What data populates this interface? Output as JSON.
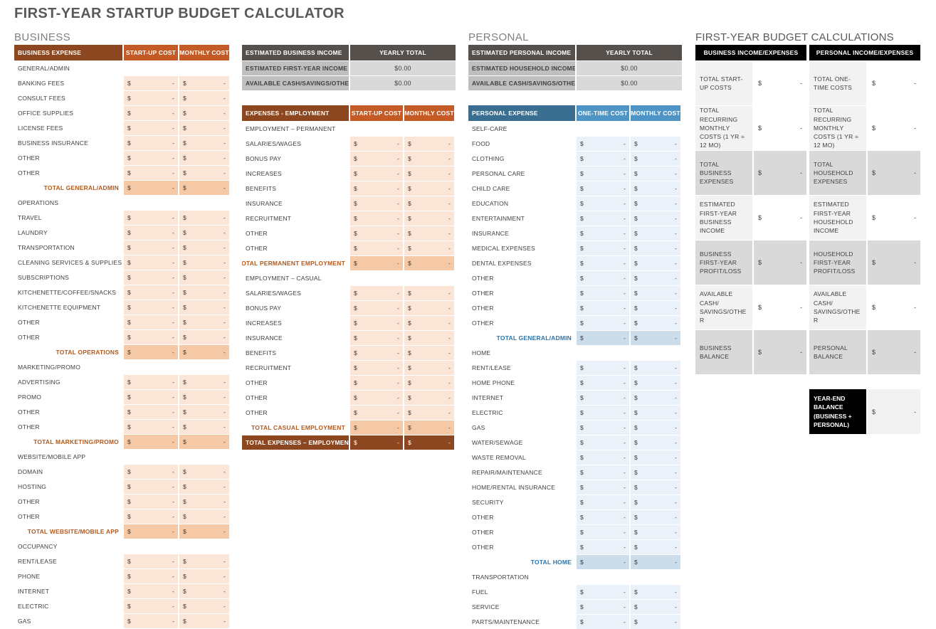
{
  "page": {
    "title": "FIRST-YEAR STARTUP BUDGET CALCULATOR"
  },
  "colors": {
    "business_header": "#8C4720",
    "business_subheader": "#C45B26",
    "business_light": "#FBE5D6",
    "business_total": "#F5C9A5",
    "business_total_text": "#B5591C",
    "personal_header": "#3A6E91",
    "personal_subheader": "#4E95C6",
    "personal_light": "#EAF1F8",
    "personal_category": "#DEEAF4",
    "personal_total": "#CBDCEA",
    "personal_total_text": "#2E74A8",
    "income_header": "#55504C",
    "income_label": "#BFBFBF",
    "income_value": "#D9D9D9",
    "calc_light": "#F2F2F2",
    "calc_dark": "#D9D9D9",
    "calc_header": "#000000"
  },
  "currency": "$",
  "empty_value": "-",
  "business": {
    "section_label": "BUSINESS",
    "expense_table": {
      "headers": [
        "BUSINESS EXPENSE",
        "START-UP COST",
        "MONTHLY COST"
      ],
      "rows": [
        {
          "type": "category",
          "label": "GENERAL/ADMIN"
        },
        {
          "type": "item",
          "label": "BANKING FEES"
        },
        {
          "type": "item",
          "label": "CONSULT FEES"
        },
        {
          "type": "item",
          "label": "OFFICE SUPPLIES"
        },
        {
          "type": "item",
          "label": "LICENSE FEES"
        },
        {
          "type": "item",
          "label": "BUSINESS INSURANCE"
        },
        {
          "type": "item",
          "label": "OTHER"
        },
        {
          "type": "item",
          "label": "OTHER"
        },
        {
          "type": "total",
          "label": "TOTAL GENERAL/ADMIN"
        },
        {
          "type": "category",
          "label": "OPERATIONS"
        },
        {
          "type": "item",
          "label": "TRAVEL"
        },
        {
          "type": "item",
          "label": "LAUNDRY"
        },
        {
          "type": "item",
          "label": "TRANSPORTATION"
        },
        {
          "type": "item",
          "label": "CLEANING SERVICES & SUPPLIES"
        },
        {
          "type": "item",
          "label": "SUBSCRIPTIONS"
        },
        {
          "type": "item",
          "label": "KITCHENETTE/COFFEE/SNACKS"
        },
        {
          "type": "item",
          "label": "KITCHENETTE EQUIPMENT"
        },
        {
          "type": "item",
          "label": "OTHER"
        },
        {
          "type": "item",
          "label": "OTHER"
        },
        {
          "type": "total",
          "label": "TOTAL OPERATIONS"
        },
        {
          "type": "category",
          "label": "MARKETING/PROMO"
        },
        {
          "type": "item",
          "label": "ADVERTISING"
        },
        {
          "type": "item",
          "label": "PROMO"
        },
        {
          "type": "item",
          "label": "OTHER"
        },
        {
          "type": "item",
          "label": "OTHER"
        },
        {
          "type": "total",
          "label": "TOTAL MARKETING/PROMO"
        },
        {
          "type": "category",
          "label": "WEBSITE/MOBILE APP"
        },
        {
          "type": "item",
          "label": "DOMAIN"
        },
        {
          "type": "item",
          "label": "HOSTING"
        },
        {
          "type": "item",
          "label": "OTHER"
        },
        {
          "type": "item",
          "label": "OTHER"
        },
        {
          "type": "total",
          "label": "TOTAL WEBSITE/MOBILE APP"
        },
        {
          "type": "category",
          "label": "OCCUPANCY"
        },
        {
          "type": "item",
          "label": "RENT/LEASE"
        },
        {
          "type": "item",
          "label": "PHONE"
        },
        {
          "type": "item",
          "label": "INTERNET"
        },
        {
          "type": "item",
          "label": "ELECTRIC"
        },
        {
          "type": "item",
          "label": "GAS"
        }
      ]
    },
    "income_table": {
      "headers": [
        "ESTIMATED BUSINESS INCOME",
        "YEARLY TOTAL"
      ],
      "rows": [
        {
          "label": "ESTIMATED FIRST-YEAR INCOME",
          "value": "$0.00"
        },
        {
          "label": "AVAILABLE CASH/SAVINGS/OTHER",
          "value": "$0.00"
        }
      ]
    },
    "employment_table": {
      "headers": [
        "EXPENSES - EMPLOYMENT",
        "START-UP COST",
        "MONTHLY COST"
      ],
      "rows": [
        {
          "type": "category",
          "label": "EMPLOYMENT – PERMANENT"
        },
        {
          "type": "item",
          "label": "SALARIES/WAGES"
        },
        {
          "type": "item",
          "label": "BONUS PAY"
        },
        {
          "type": "item",
          "label": "INCREASES"
        },
        {
          "type": "item",
          "label": "BENEFITS"
        },
        {
          "type": "item",
          "label": "INSURANCE"
        },
        {
          "type": "item",
          "label": "RECRUITMENT"
        },
        {
          "type": "item",
          "label": "OTHER"
        },
        {
          "type": "item",
          "label": "OTHER"
        },
        {
          "type": "total",
          "label": "TOTAL PERMANENT EMPLOYMENT"
        },
        {
          "type": "category",
          "label": "EMPLOYMENT – CASUAL"
        },
        {
          "type": "item",
          "label": "SALARIES/WAGES"
        },
        {
          "type": "item",
          "label": "BONUS PAY"
        },
        {
          "type": "item",
          "label": "INCREASES"
        },
        {
          "type": "item",
          "label": "INSURANCE"
        },
        {
          "type": "item",
          "label": "BENEFITS"
        },
        {
          "type": "item",
          "label": "RECRUITMENT"
        },
        {
          "type": "item",
          "label": "OTHER"
        },
        {
          "type": "item",
          "label": "OTHER"
        },
        {
          "type": "item",
          "label": "OTHER"
        },
        {
          "type": "total",
          "label": "TOTAL CASUAL EMPLOYMENT"
        },
        {
          "type": "grandtotal",
          "label": "TOTAL EXPENSES – EMPLOYMENT"
        }
      ]
    }
  },
  "personal": {
    "section_label": "PERSONAL",
    "income_table": {
      "headers": [
        "ESTIMATED PERSONAL INCOME",
        "YEARLY TOTAL"
      ],
      "rows": [
        {
          "label": "ESTIMATED HOUSEHOLD INCOME",
          "value": "$0.00"
        },
        {
          "label": "AVAILABLE CASH/SAVINGS/OTHER",
          "value": "$0.00"
        }
      ]
    },
    "expense_table": {
      "headers": [
        "PERSONAL EXPENSE",
        "ONE-TIME COST",
        "MONTHLY COST"
      ],
      "rows": [
        {
          "type": "category",
          "label": "SELF-CARE"
        },
        {
          "type": "item",
          "label": "FOOD"
        },
        {
          "type": "item",
          "label": "CLOTHING"
        },
        {
          "type": "item",
          "label": "PERSONAL CARE"
        },
        {
          "type": "item",
          "label": "CHILD CARE"
        },
        {
          "type": "item",
          "label": "EDUCATION"
        },
        {
          "type": "item",
          "label": "ENTERTAINMENT"
        },
        {
          "type": "item",
          "label": "INSURANCE"
        },
        {
          "type": "item",
          "label": "MEDICAL EXPENSES"
        },
        {
          "type": "item",
          "label": "DENTAL EXPENSES"
        },
        {
          "type": "item",
          "label": "OTHER"
        },
        {
          "type": "item",
          "label": "OTHER"
        },
        {
          "type": "item",
          "label": "OTHER"
        },
        {
          "type": "item",
          "label": "OTHER"
        },
        {
          "type": "total",
          "label": "TOTAL GENERAL/ADMIN"
        },
        {
          "type": "category",
          "label": "HOME"
        },
        {
          "type": "item",
          "label": "RENT/LEASE"
        },
        {
          "type": "item",
          "label": "HOME PHONE"
        },
        {
          "type": "item",
          "label": "INTERNET"
        },
        {
          "type": "item",
          "label": "ELECTRIC"
        },
        {
          "type": "item",
          "label": "GAS"
        },
        {
          "type": "item",
          "label": "WATER/SEWAGE"
        },
        {
          "type": "item",
          "label": "WASTE REMOVAL"
        },
        {
          "type": "item",
          "label": "REPAIR/MAINTENANCE"
        },
        {
          "type": "item",
          "label": "HOME/RENTAL INSURANCE"
        },
        {
          "type": "item",
          "label": "SECURITY"
        },
        {
          "type": "item",
          "label": "OTHER"
        },
        {
          "type": "item",
          "label": "OTHER"
        },
        {
          "type": "item",
          "label": "OTHER"
        },
        {
          "type": "total",
          "label": "TOTAL HOME"
        },
        {
          "type": "category",
          "label": "TRANSPORTATION"
        },
        {
          "type": "item",
          "label": "FUEL"
        },
        {
          "type": "item",
          "label": "SERVICE"
        },
        {
          "type": "item",
          "label": "PARTS/MAINTENANCE"
        }
      ]
    }
  },
  "calculations": {
    "section_label": "FIRST-YEAR BUDGET CALCULATIONS",
    "business_header": "BUSINESS INCOME/EXPENSES",
    "personal_header": "PERSONAL INCOME/EXPENSES",
    "rows": [
      {
        "business": "TOTAL START-UP COSTS",
        "personal": "TOTAL ONE-TIME COSTS",
        "shade": "light"
      },
      {
        "business": "TOTAL RECURRING MONTHLY COSTS (1 YR = 12 MO)",
        "personal": "TOTAL RECURRING MONTHLY COSTS (1 YR = 12 MO)",
        "shade": "light"
      },
      {
        "business": "TOTAL BUSINESS EXPENSES",
        "personal": "TOTAL HOUSEHOLD EXPENSES",
        "shade": "dark"
      },
      {
        "business": "ESTIMATED FIRST-YEAR BUSINESS INCOME",
        "personal": "ESTIMATED FIRST-YEAR HOUSEHOLD INCOME",
        "shade": "light"
      },
      {
        "business": "BUSINESS FIRST-YEAR PROFIT/LOSS",
        "personal": "HOUSEHOLD FIRST-YEAR PROFIT/LOSS",
        "shade": "dark"
      },
      {
        "business": "AVAILABLE CASH/ SAVINGS/OTHER",
        "personal": "AVAILABLE CASH/ SAVINGS/OTHER",
        "shade": "light"
      },
      {
        "business": "BUSINESS BALANCE",
        "personal": "PERSONAL BALANCE",
        "shade": "dark"
      }
    ],
    "year_end": {
      "label": "YEAR-END BALANCE (BUSINESS + PERSONAL)",
      "currency": "$",
      "value": "-"
    }
  }
}
